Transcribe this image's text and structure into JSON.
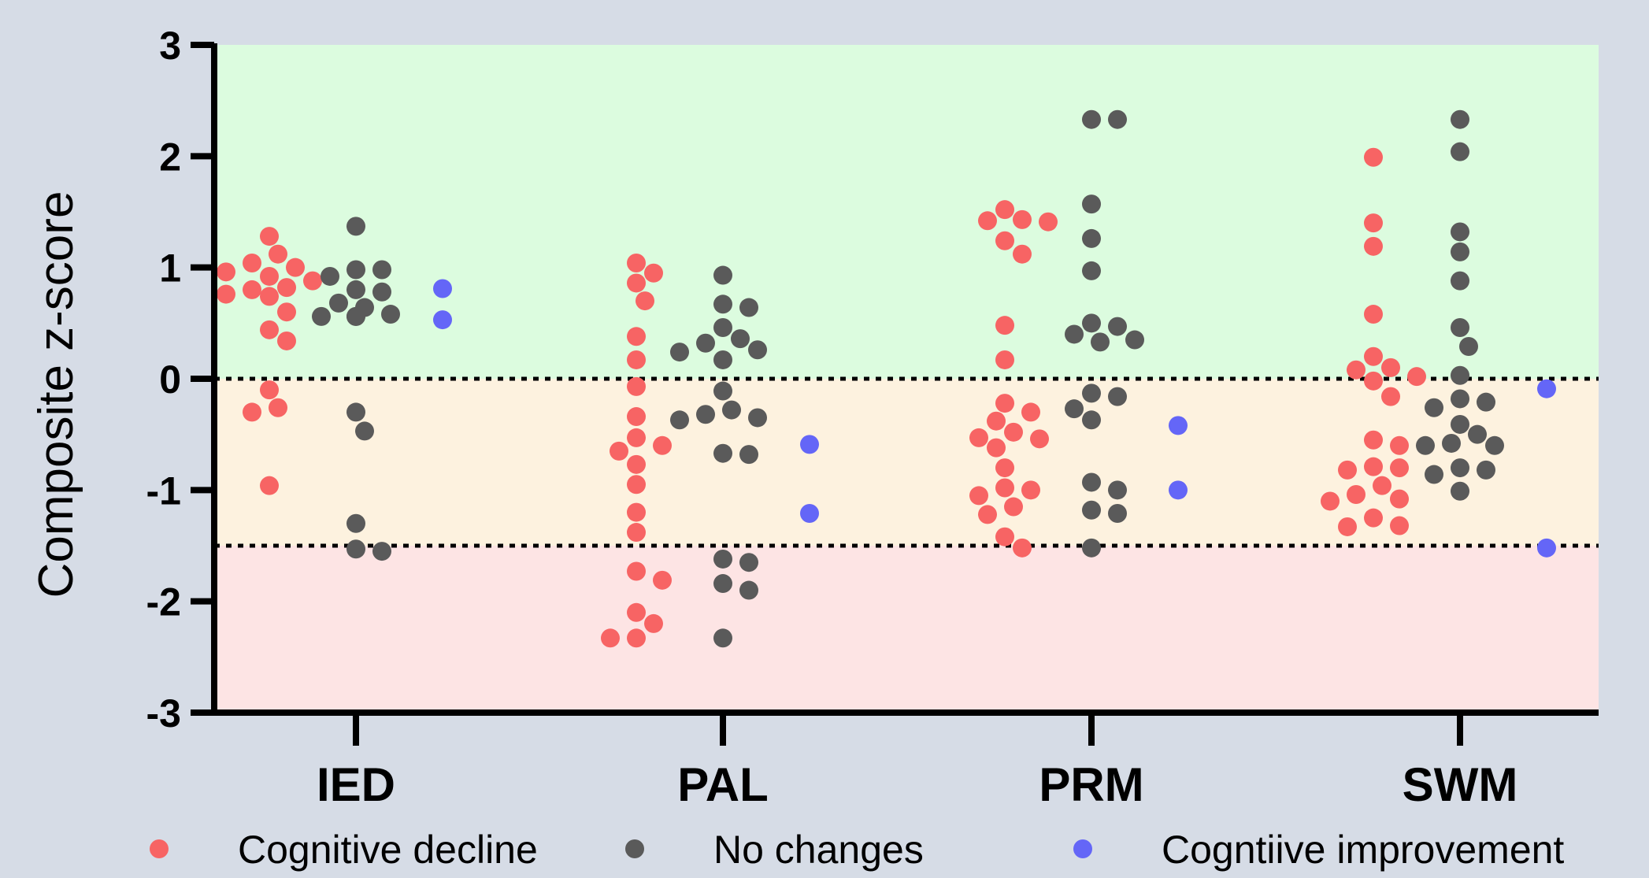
{
  "chart_data": {
    "type": "scatter",
    "ylabel": "Composite z-score",
    "ylim": [
      -3,
      3
    ],
    "yticks": [
      3,
      2,
      1,
      0,
      -1,
      -2,
      -3
    ],
    "categories": [
      "IED",
      "PAL",
      "PRM",
      "SWM"
    ],
    "reference_lines": [
      0,
      -1.5
    ],
    "zones": [
      {
        "from": 0,
        "to": 3,
        "color": "#dcfcdf"
      },
      {
        "from": -1.5,
        "to": 0,
        "color": "#fdf2df"
      },
      {
        "from": -3,
        "to": -1.5,
        "color": "#fde4e4"
      }
    ],
    "legend_position": "bottom",
    "series": [
      {
        "name": "Cognitive decline",
        "color": "#f76464",
        "points": [
          {
            "category": "IED",
            "y": 1.28
          },
          {
            "category": "IED",
            "y": 1.12
          },
          {
            "category": "IED",
            "y": 1.04
          },
          {
            "category": "IED",
            "y": 1.0
          },
          {
            "category": "IED",
            "y": 0.96
          },
          {
            "category": "IED",
            "y": 0.92
          },
          {
            "category": "IED",
            "y": 0.88
          },
          {
            "category": "IED",
            "y": 0.82
          },
          {
            "category": "IED",
            "y": 0.8
          },
          {
            "category": "IED",
            "y": 0.76
          },
          {
            "category": "IED",
            "y": 0.74
          },
          {
            "category": "IED",
            "y": 0.6
          },
          {
            "category": "IED",
            "y": 0.44
          },
          {
            "category": "IED",
            "y": 0.34
          },
          {
            "category": "IED",
            "y": -0.1
          },
          {
            "category": "IED",
            "y": -0.26
          },
          {
            "category": "IED",
            "y": -0.3
          },
          {
            "category": "IED",
            "y": -0.96
          },
          {
            "category": "PAL",
            "y": 1.04
          },
          {
            "category": "PAL",
            "y": 0.95
          },
          {
            "category": "PAL",
            "y": 0.86
          },
          {
            "category": "PAL",
            "y": 0.7
          },
          {
            "category": "PAL",
            "y": 0.38
          },
          {
            "category": "PAL",
            "y": 0.17
          },
          {
            "category": "PAL",
            "y": -0.07
          },
          {
            "category": "PAL",
            "y": -0.34
          },
          {
            "category": "PAL",
            "y": -0.53
          },
          {
            "category": "PAL",
            "y": -0.6
          },
          {
            "category": "PAL",
            "y": -0.65
          },
          {
            "category": "PAL",
            "y": -0.77
          },
          {
            "category": "PAL",
            "y": -0.95
          },
          {
            "category": "PAL",
            "y": -1.2
          },
          {
            "category": "PAL",
            "y": -1.38
          },
          {
            "category": "PAL",
            "y": -1.73
          },
          {
            "category": "PAL",
            "y": -1.81
          },
          {
            "category": "PAL",
            "y": -2.1
          },
          {
            "category": "PAL",
            "y": -2.2
          },
          {
            "category": "PAL",
            "y": -2.33
          },
          {
            "category": "PAL",
            "y": -2.33
          },
          {
            "category": "PRM",
            "y": 1.52
          },
          {
            "category": "PRM",
            "y": 1.43
          },
          {
            "category": "PRM",
            "y": 1.42
          },
          {
            "category": "PRM",
            "y": 1.41
          },
          {
            "category": "PRM",
            "y": 1.24
          },
          {
            "category": "PRM",
            "y": 1.12
          },
          {
            "category": "PRM",
            "y": 0.48
          },
          {
            "category": "PRM",
            "y": 0.17
          },
          {
            "category": "PRM",
            "y": -0.22
          },
          {
            "category": "PRM",
            "y": -0.3
          },
          {
            "category": "PRM",
            "y": -0.38
          },
          {
            "category": "PRM",
            "y": -0.48
          },
          {
            "category": "PRM",
            "y": -0.53
          },
          {
            "category": "PRM",
            "y": -0.54
          },
          {
            "category": "PRM",
            "y": -0.62
          },
          {
            "category": "PRM",
            "y": -0.8
          },
          {
            "category": "PRM",
            "y": -0.98
          },
          {
            "category": "PRM",
            "y": -1.0
          },
          {
            "category": "PRM",
            "y": -1.05
          },
          {
            "category": "PRM",
            "y": -1.15
          },
          {
            "category": "PRM",
            "y": -1.22
          },
          {
            "category": "PRM",
            "y": -1.42
          },
          {
            "category": "PRM",
            "y": -1.52
          },
          {
            "category": "SWM",
            "y": 1.99
          },
          {
            "category": "SWM",
            "y": 1.4
          },
          {
            "category": "SWM",
            "y": 1.19
          },
          {
            "category": "SWM",
            "y": 0.58
          },
          {
            "category": "SWM",
            "y": 0.2
          },
          {
            "category": "SWM",
            "y": 0.1
          },
          {
            "category": "SWM",
            "y": 0.08
          },
          {
            "category": "SWM",
            "y": 0.02
          },
          {
            "category": "SWM",
            "y": -0.02
          },
          {
            "category": "SWM",
            "y": -0.16
          },
          {
            "category": "SWM",
            "y": -0.55
          },
          {
            "category": "SWM",
            "y": -0.6
          },
          {
            "category": "SWM",
            "y": -0.79
          },
          {
            "category": "SWM",
            "y": -0.8
          },
          {
            "category": "SWM",
            "y": -0.82
          },
          {
            "category": "SWM",
            "y": -0.96
          },
          {
            "category": "SWM",
            "y": -1.04
          },
          {
            "category": "SWM",
            "y": -1.08
          },
          {
            "category": "SWM",
            "y": -1.1
          },
          {
            "category": "SWM",
            "y": -1.25
          },
          {
            "category": "SWM",
            "y": -1.32
          },
          {
            "category": "SWM",
            "y": -1.33
          }
        ]
      },
      {
        "name": "No changes",
        "color": "#5a5a5a",
        "points": [
          {
            "category": "IED",
            "y": 1.37
          },
          {
            "category": "IED",
            "y": 0.98
          },
          {
            "category": "IED",
            "y": 0.98
          },
          {
            "category": "IED",
            "y": 0.92
          },
          {
            "category": "IED",
            "y": 0.8
          },
          {
            "category": "IED",
            "y": 0.78
          },
          {
            "category": "IED",
            "y": 0.68
          },
          {
            "category": "IED",
            "y": 0.64
          },
          {
            "category": "IED",
            "y": 0.58
          },
          {
            "category": "IED",
            "y": 0.56
          },
          {
            "category": "IED",
            "y": 0.56
          },
          {
            "category": "IED",
            "y": 0.56
          },
          {
            "category": "IED",
            "y": -0.3
          },
          {
            "category": "IED",
            "y": -0.47
          },
          {
            "category": "IED",
            "y": -1.3
          },
          {
            "category": "IED",
            "y": -1.53
          },
          {
            "category": "IED",
            "y": -1.55
          },
          {
            "category": "PAL",
            "y": 0.93
          },
          {
            "category": "PAL",
            "y": 0.67
          },
          {
            "category": "PAL",
            "y": 0.64
          },
          {
            "category": "PAL",
            "y": 0.46
          },
          {
            "category": "PAL",
            "y": 0.36
          },
          {
            "category": "PAL",
            "y": 0.32
          },
          {
            "category": "PAL",
            "y": 0.26
          },
          {
            "category": "PAL",
            "y": 0.24
          },
          {
            "category": "PAL",
            "y": 0.17
          },
          {
            "category": "PAL",
            "y": -0.11
          },
          {
            "category": "PAL",
            "y": -0.28
          },
          {
            "category": "PAL",
            "y": -0.32
          },
          {
            "category": "PAL",
            "y": -0.35
          },
          {
            "category": "PAL",
            "y": -0.37
          },
          {
            "category": "PAL",
            "y": -0.67
          },
          {
            "category": "PAL",
            "y": -0.68
          },
          {
            "category": "PAL",
            "y": -1.62
          },
          {
            "category": "PAL",
            "y": -1.65
          },
          {
            "category": "PAL",
            "y": -1.84
          },
          {
            "category": "PAL",
            "y": -1.9
          },
          {
            "category": "PAL",
            "y": -2.33
          },
          {
            "category": "PRM",
            "y": 2.33
          },
          {
            "category": "PRM",
            "y": 2.33
          },
          {
            "category": "PRM",
            "y": 1.57
          },
          {
            "category": "PRM",
            "y": 1.26
          },
          {
            "category": "PRM",
            "y": 0.97
          },
          {
            "category": "PRM",
            "y": 0.5
          },
          {
            "category": "PRM",
            "y": 0.47
          },
          {
            "category": "PRM",
            "y": 0.4
          },
          {
            "category": "PRM",
            "y": 0.35
          },
          {
            "category": "PRM",
            "y": 0.33
          },
          {
            "category": "PRM",
            "y": -0.13
          },
          {
            "category": "PRM",
            "y": -0.16
          },
          {
            "category": "PRM",
            "y": -0.27
          },
          {
            "category": "PRM",
            "y": -0.37
          },
          {
            "category": "PRM",
            "y": -0.93
          },
          {
            "category": "PRM",
            "y": -1.0
          },
          {
            "category": "PRM",
            "y": -1.18
          },
          {
            "category": "PRM",
            "y": -1.21
          },
          {
            "category": "PRM",
            "y": -1.52
          },
          {
            "category": "SWM",
            "y": 2.33
          },
          {
            "category": "SWM",
            "y": 2.04
          },
          {
            "category": "SWM",
            "y": 1.32
          },
          {
            "category": "SWM",
            "y": 1.14
          },
          {
            "category": "SWM",
            "y": 0.88
          },
          {
            "category": "SWM",
            "y": 0.46
          },
          {
            "category": "SWM",
            "y": 0.29
          },
          {
            "category": "SWM",
            "y": 0.03
          },
          {
            "category": "SWM",
            "y": -0.18
          },
          {
            "category": "SWM",
            "y": -0.21
          },
          {
            "category": "SWM",
            "y": -0.26
          },
          {
            "category": "SWM",
            "y": -0.41
          },
          {
            "category": "SWM",
            "y": -0.5
          },
          {
            "category": "SWM",
            "y": -0.58
          },
          {
            "category": "SWM",
            "y": -0.6
          },
          {
            "category": "SWM",
            "y": -0.6
          },
          {
            "category": "SWM",
            "y": -0.8
          },
          {
            "category": "SWM",
            "y": -0.82
          },
          {
            "category": "SWM",
            "y": -0.86
          },
          {
            "category": "SWM",
            "y": -1.01
          }
        ]
      },
      {
        "name": "Cogntiive improvement",
        "color": "#6466f7",
        "points": [
          {
            "category": "IED",
            "y": 0.81
          },
          {
            "category": "IED",
            "y": 0.53
          },
          {
            "category": "PAL",
            "y": -0.59
          },
          {
            "category": "PAL",
            "y": -1.21
          },
          {
            "category": "PRM",
            "y": -0.42
          },
          {
            "category": "PRM",
            "y": -1.0
          },
          {
            "category": "SWM",
            "y": -0.09
          },
          {
            "category": "SWM",
            "y": -1.52
          }
        ]
      }
    ]
  }
}
